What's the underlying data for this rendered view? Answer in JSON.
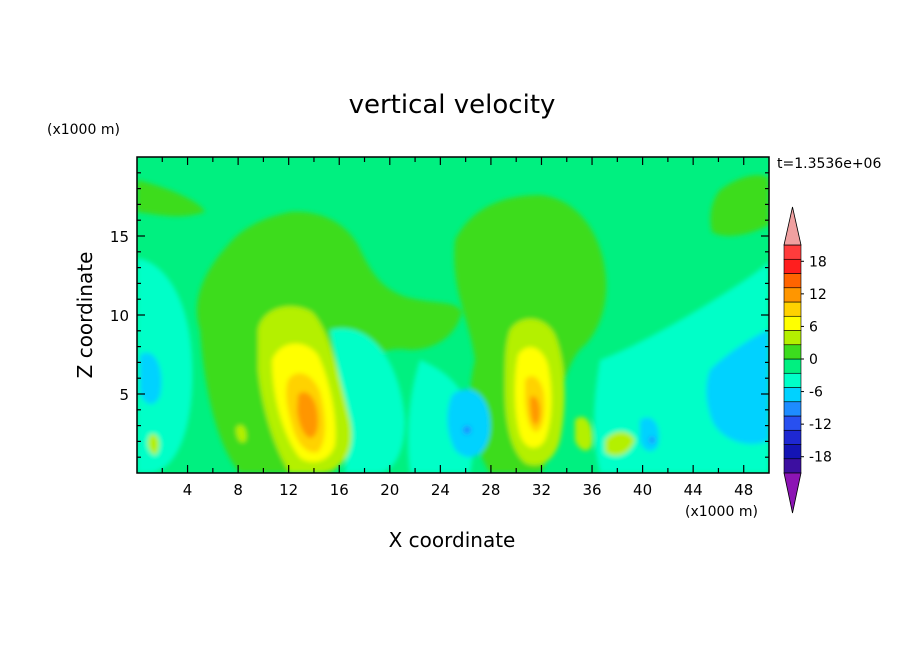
{
  "chart_data": {
    "type": "heatmap",
    "title": "vertical velocity",
    "xlabel": "X coordinate",
    "ylabel": "Z coordinate",
    "x_unit": "(x1000 m)",
    "y_unit": "(x1000 m)",
    "time_label": "t=1.3536e+06",
    "xlim": [
      0,
      50
    ],
    "ylim": [
      0,
      20
    ],
    "x_ticks": [
      4,
      8,
      12,
      16,
      20,
      24,
      28,
      32,
      36,
      40,
      44,
      48
    ],
    "y_ticks": [
      5,
      10,
      15
    ],
    "colorbar": {
      "levels": [
        -21,
        -18,
        -15,
        -12,
        -9,
        -6,
        -3,
        0,
        3,
        6,
        9,
        12,
        15,
        18,
        21
      ],
      "labels": [
        -18,
        -12,
        -6,
        0,
        6,
        12,
        18
      ],
      "colors": [
        "#3c0fa0",
        "#1414b4",
        "#1e28d2",
        "#2850f0",
        "#1e8cff",
        "#00d2ff",
        "#00ffc8",
        "#00f080",
        "#3cdc1e",
        "#b4f000",
        "#ffff00",
        "#ffd200",
        "#ff9600",
        "#ff6400",
        "#ff1e1e",
        "#ff3c3c"
      ],
      "under_color": "#8c14b4",
      "over_color": "#f0a0a0"
    },
    "features": [
      {
        "kind": "updraft",
        "x": 13.5,
        "z": 4.2,
        "peak": 13
      },
      {
        "kind": "updraft",
        "x": 31.5,
        "z": 4.0,
        "peak": 12
      }
    ]
  }
}
